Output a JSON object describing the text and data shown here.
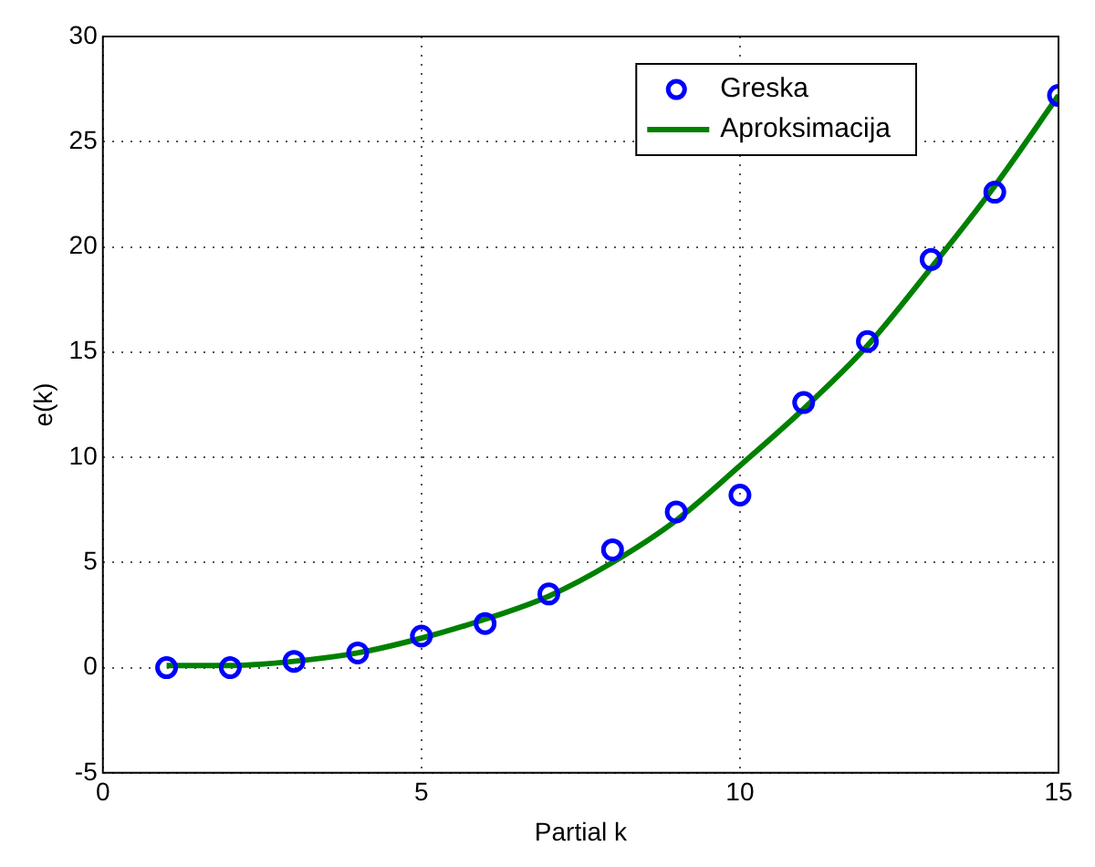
{
  "chart_data": {
    "type": "scatter",
    "xlabel": "Partial k",
    "ylabel": "e(k)",
    "xlim": [
      0,
      15
    ],
    "ylim": [
      -5,
      30
    ],
    "xticks": [
      0,
      5,
      10,
      15
    ],
    "yticks": [
      -5,
      0,
      5,
      10,
      15,
      20,
      25,
      30
    ],
    "grid": true,
    "legend": "top right",
    "series": [
      {
        "name": "Greska",
        "type": "scatter",
        "marker": "circle",
        "color": "#0000ff",
        "x": [
          1,
          2,
          3,
          4,
          5,
          6,
          7,
          8,
          9,
          10,
          11,
          12,
          13,
          14,
          15
        ],
        "values": [
          0,
          0,
          0.3,
          0.7,
          1.5,
          2.1,
          3.5,
          5.6,
          7.4,
          8.2,
          12.6,
          15.5,
          19.4,
          22.6,
          27.2
        ]
      },
      {
        "name": "Aproksimacija",
        "type": "line",
        "line_style": "solid",
        "color": "#008000",
        "x": [
          1,
          2,
          3,
          4,
          5,
          6,
          7,
          8,
          9,
          10,
          11,
          12,
          13,
          14,
          15
        ],
        "values": [
          0.1,
          0.1,
          0.3,
          0.7,
          1.4,
          2.3,
          3.4,
          5.0,
          7.0,
          9.6,
          12.3,
          15.3,
          19.0,
          22.9,
          27.2
        ]
      }
    ]
  }
}
